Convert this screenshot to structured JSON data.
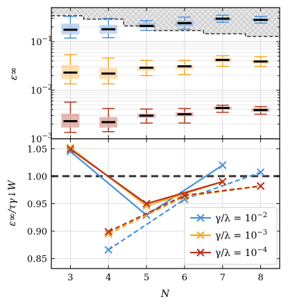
{
  "colors": {
    "gamma_1e-2": "#4a90d9",
    "gamma_1e-3": "#f5a623",
    "gamma_1e-4": "#b5341c",
    "hatch_region": "#e6e6e6",
    "reference_line": "#333333",
    "grid": "#d3d3d3"
  },
  "chart_data": [
    {
      "type": "box",
      "ylabel": "ε∞",
      "yscale": "log",
      "ylim": [
        0.001,
        0.5
      ],
      "xlim": [
        2.5,
        8.5
      ],
      "yticks": [
        {
          "value": 0.001,
          "base": "10",
          "exp": "−3"
        },
        {
          "value": 0.01,
          "base": "10",
          "exp": "−2"
        },
        {
          "value": 0.1,
          "base": "10",
          "exp": "−1"
        }
      ],
      "grid": true,
      "x": [
        3,
        4,
        5,
        6,
        7,
        8
      ],
      "series": [
        {
          "color_key": "gamma_1e-2",
          "boxes": [
            {
              "x": 3,
              "whislo": 0.118,
              "q1": 0.14,
              "med": 0.175,
              "q3": 0.235,
              "whishi": 0.33
            },
            {
              "x": 4,
              "whislo": 0.12,
              "q1": 0.145,
              "med": 0.18,
              "q3": 0.22,
              "whishi": 0.3
            },
            {
              "x": 5,
              "whislo": 0.17,
              "q1": 0.19,
              "med": 0.21,
              "q3": 0.24,
              "whishi": 0.27
            },
            {
              "x": 6,
              "whislo": 0.18,
              "q1": 0.205,
              "med": 0.24,
              "q3": 0.27,
              "whishi": 0.32
            },
            {
              "x": 7,
              "whislo": 0.25,
              "q1": 0.27,
              "med": 0.295,
              "q3": 0.315,
              "whishi": 0.35
            },
            {
              "x": 8,
              "whislo": 0.24,
              "q1": 0.26,
              "med": 0.28,
              "q3": 0.3,
              "whishi": 0.33
            }
          ]
        },
        {
          "color_key": "gamma_1e-3",
          "boxes": [
            {
              "x": 3,
              "whislo": 0.0135,
              "q1": 0.017,
              "med": 0.023,
              "q3": 0.033,
              "whishi": 0.054
            },
            {
              "x": 4,
              "whislo": 0.0135,
              "q1": 0.017,
              "med": 0.022,
              "q3": 0.029,
              "whishi": 0.046
            },
            {
              "x": 5,
              "whislo": 0.02,
              "q1": 0.025,
              "med": 0.029,
              "q3": 0.031,
              "whishi": 0.041
            },
            {
              "x": 6,
              "whislo": 0.021,
              "q1": 0.027,
              "med": 0.031,
              "q3": 0.033,
              "whishi": 0.041
            },
            {
              "x": 7,
              "whislo": 0.031,
              "q1": 0.037,
              "med": 0.042,
              "q3": 0.046,
              "whishi": 0.051
            },
            {
              "x": 8,
              "whislo": 0.031,
              "q1": 0.035,
              "med": 0.039,
              "q3": 0.042,
              "whishi": 0.049
            }
          ]
        },
        {
          "color_key": "gamma_1e-4",
          "boxes": [
            {
              "x": 3,
              "whislo": 0.00135,
              "q1": 0.0017,
              "med": 0.0023,
              "q3": 0.0033,
              "whishi": 0.0057
            },
            {
              "x": 4,
              "whislo": 0.0014,
              "q1": 0.0017,
              "med": 0.0022,
              "q3": 0.0028,
              "whishi": 0.0042
            },
            {
              "x": 5,
              "whislo": 0.0021,
              "q1": 0.0027,
              "med": 0.003,
              "q3": 0.0033,
              "whishi": 0.0041
            },
            {
              "x": 6,
              "whislo": 0.0021,
              "q1": 0.0029,
              "med": 0.0032,
              "q3": 0.0035,
              "whishi": 0.0042
            },
            {
              "x": 7,
              "whislo": 0.0035,
              "q1": 0.004,
              "med": 0.0043,
              "q3": 0.0046,
              "whishi": 0.0049
            },
            {
              "x": 8,
              "whislo": 0.0032,
              "q1": 0.0036,
              "med": 0.0039,
              "q3": 0.0043,
              "whishi": 0.0046
            }
          ]
        }
      ],
      "hatch_boundary": [
        {
          "x0": 2.5,
          "x1": 3.35,
          "y": 0.34
        },
        {
          "x0": 3.35,
          "x1": 4.4,
          "y": 0.29
        },
        {
          "x0": 4.4,
          "x1": 5.2,
          "y": 0.21
        },
        {
          "x0": 5.2,
          "x1": 6.5,
          "y": 0.168
        },
        {
          "x0": 6.5,
          "x1": 7.6,
          "y": 0.145
        },
        {
          "x0": 7.6,
          "x1": 8.5,
          "y": 0.128
        }
      ]
    },
    {
      "type": "line",
      "xlabel": "N",
      "ylabel": "ε∞/τγ↓W",
      "xlim": [
        2.5,
        8.5
      ],
      "ylim": [
        0.832,
        1.068
      ],
      "xticks": [
        3,
        4,
        5,
        6,
        7,
        8
      ],
      "yticks": [
        "0.85",
        "0.90",
        "0.95",
        "1.00",
        "1.05"
      ],
      "reference_line": 1.0,
      "grid": true,
      "legend_position": "lower-right",
      "series": [
        {
          "name_base": "γ/λ = 10",
          "name_exp": "−2",
          "color_key": "gamma_1e-2",
          "style": "solid",
          "x": [
            3,
            5,
            7
          ],
          "y": [
            1.045,
            0.929,
            1.02
          ]
        },
        {
          "color_key": "gamma_1e-2",
          "style": "dashed",
          "x": [
            4,
            6,
            8
          ],
          "y": [
            0.866,
            0.958,
            1.007
          ]
        },
        {
          "name_base": "γ/λ = 10",
          "name_exp": "−3",
          "color_key": "gamma_1e-3",
          "style": "solid",
          "x": [
            3,
            5,
            7
          ],
          "y": [
            1.052,
            0.946,
            0.99
          ]
        },
        {
          "color_key": "gamma_1e-3",
          "style": "dashed",
          "x": [
            4,
            6,
            8
          ],
          "y": [
            0.895,
            0.963,
            0.982
          ]
        },
        {
          "name_base": "γ/λ = 10",
          "name_exp": "−4",
          "color_key": "gamma_1e-4",
          "style": "solid",
          "x": [
            3,
            5,
            7
          ],
          "y": [
            1.049,
            0.95,
            0.99
          ]
        },
        {
          "color_key": "gamma_1e-4",
          "style": "dashed",
          "x": [
            4,
            6,
            8
          ],
          "y": [
            0.899,
            0.965,
            0.982
          ]
        }
      ]
    }
  ]
}
